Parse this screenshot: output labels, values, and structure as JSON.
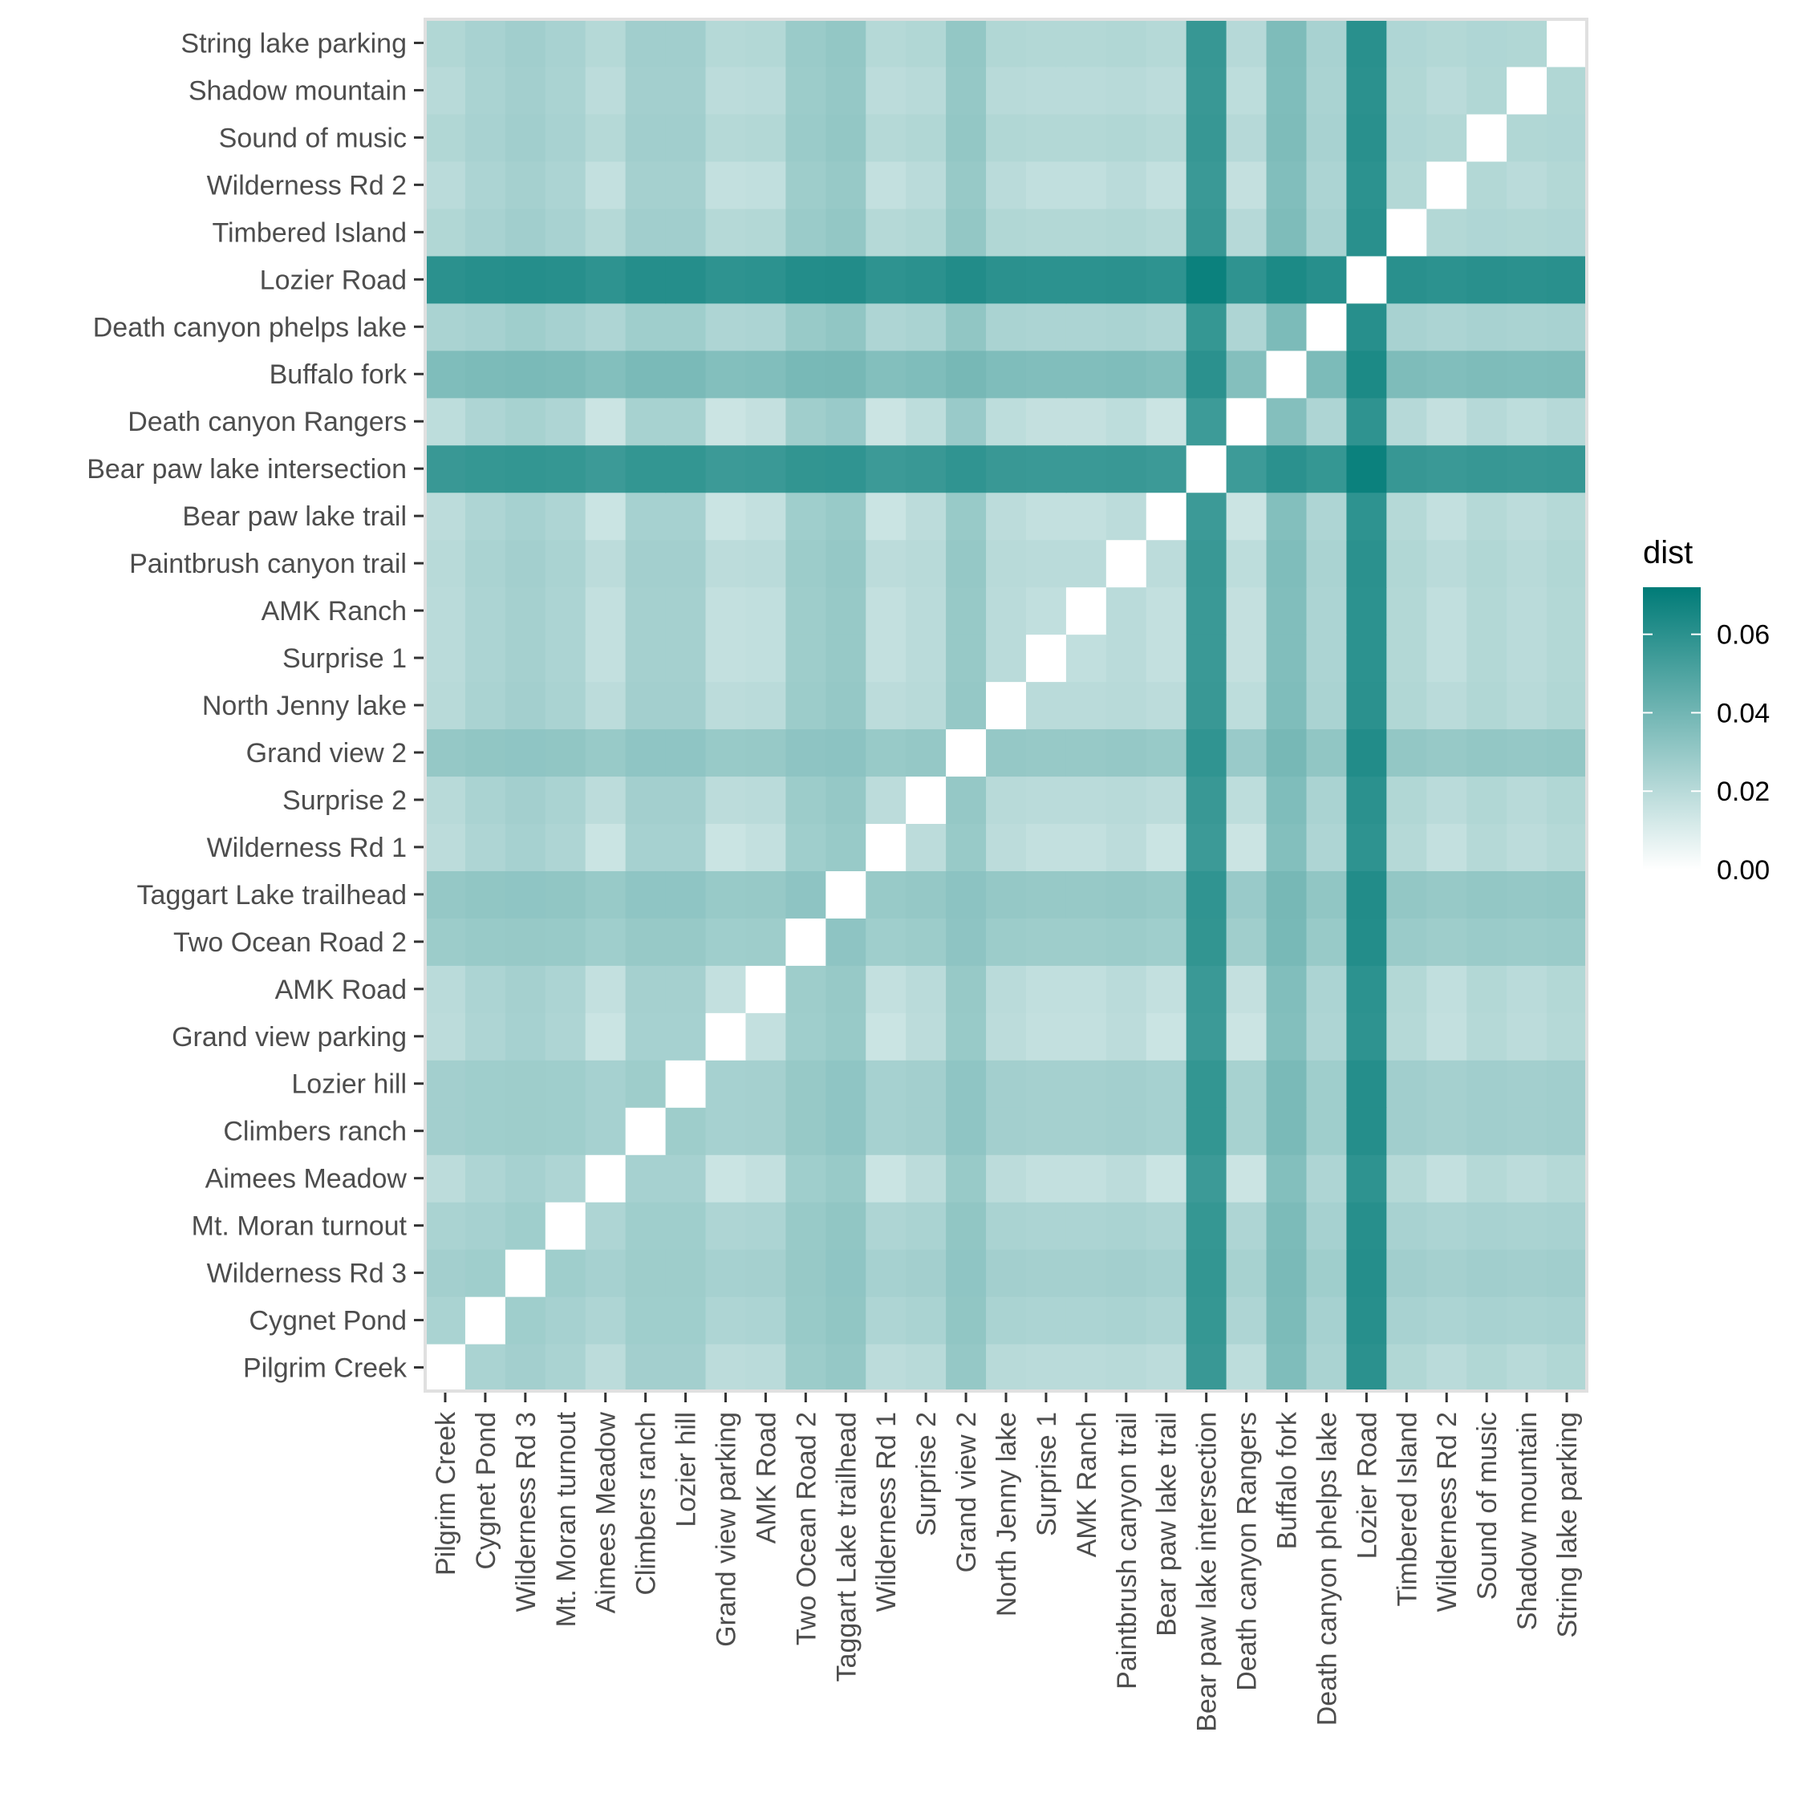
{
  "chart_data": {
    "type": "heatmap",
    "title": "",
    "xlabel": "",
    "ylabel": "",
    "categories": [
      "Pilgrim Creek",
      "Cygnet Pond",
      "Wilderness Rd 3",
      "Mt. Moran turnout",
      "Aimees Meadow",
      "Climbers ranch",
      "Lozier hill",
      "Grand view parking",
      "AMK Road",
      "Two Ocean Road 2",
      "Taggart Lake trailhead",
      "Wilderness Rd 1",
      "Surprise 2",
      "Grand view 2",
      "North Jenny lake",
      "Surprise 1",
      "AMK Ranch",
      "Paintbrush canyon trail",
      "Bear paw lake trail",
      "Bear paw lake intersection",
      "Death canyon Rangers",
      "Buffalo fork",
      "Death canyon phelps lake",
      "Lozier Road",
      "Timbered Island",
      "Wilderness Rd 2",
      "Sound of music",
      "Shadow mountain",
      "String lake parking"
    ],
    "base_level": [
      0.016,
      0.02,
      0.022,
      0.02,
      0.012,
      0.022,
      0.022,
      0.012,
      0.014,
      0.024,
      0.026,
      0.012,
      0.016,
      0.026,
      0.016,
      0.014,
      0.014,
      0.016,
      0.012,
      0.052,
      0.011,
      0.032,
      0.02,
      0.056,
      0.018,
      0.014,
      0.018,
      0.016,
      0.018
    ],
    "values_note": "",
    "legend": {
      "title": "dist",
      "ticks": [
        "0.00",
        "0.02",
        "0.04",
        "0.06"
      ],
      "range": [
        0,
        0.072
      ],
      "position": "right"
    },
    "colors": {
      "low": "#ffffff",
      "high": "#007b77",
      "panel_border": "#e0e0e0",
      "label": "#4d4d4d",
      "tick_mark": "#333333"
    }
  }
}
